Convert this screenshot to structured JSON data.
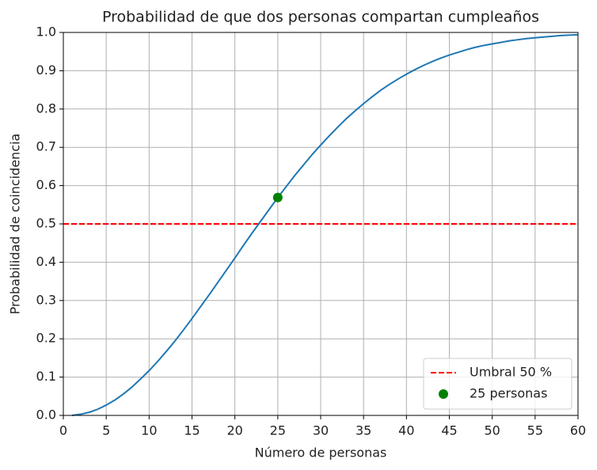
{
  "chart_data": {
    "type": "line",
    "title": "Probabilidad de que dos personas compartan cumpleaños",
    "xlabel": "Número de personas",
    "ylabel": "Probabilidad de coincidencia",
    "x": [
      1,
      2,
      3,
      4,
      5,
      6,
      7,
      8,
      9,
      10,
      11,
      12,
      13,
      14,
      15,
      16,
      17,
      18,
      19,
      20,
      21,
      22,
      23,
      24,
      25,
      26,
      27,
      28,
      29,
      30,
      31,
      32,
      33,
      34,
      35,
      36,
      37,
      38,
      39,
      40,
      41,
      42,
      43,
      44,
      45,
      46,
      47,
      48,
      49,
      50,
      51,
      52,
      53,
      54,
      55,
      56,
      57,
      58,
      59,
      60
    ],
    "series": [
      {
        "color": "#1f77b4",
        "values": [
          0,
          0.003,
          0.008,
          0.016,
          0.027,
          0.04,
          0.056,
          0.074,
          0.095,
          0.117,
          0.141,
          0.167,
          0.194,
          0.223,
          0.253,
          0.284,
          0.315,
          0.347,
          0.379,
          0.411,
          0.444,
          0.476,
          0.507,
          0.538,
          0.569,
          0.598,
          0.627,
          0.654,
          0.681,
          0.706,
          0.73,
          0.753,
          0.775,
          0.795,
          0.814,
          0.832,
          0.849,
          0.864,
          0.878,
          0.891,
          0.903,
          0.914,
          0.924,
          0.933,
          0.941,
          0.948,
          0.955,
          0.961,
          0.966,
          0.97,
          0.974,
          0.978,
          0.981,
          0.984,
          0.986,
          0.988,
          0.99,
          0.992,
          0.993,
          0.994
        ]
      }
    ],
    "hlines": [
      {
        "name": "Umbral 50 %",
        "y": 0.5,
        "color": "#ff0000",
        "style": "dashed"
      }
    ],
    "points": [
      {
        "name": "25 personas",
        "x": 25,
        "y": 0.569,
        "color": "#008000"
      }
    ],
    "xlim": [
      0,
      60
    ],
    "ylim": [
      0,
      1
    ],
    "xticks": [
      0,
      5,
      10,
      15,
      20,
      25,
      30,
      35,
      40,
      45,
      50,
      55,
      60
    ],
    "yticks": [
      {
        "value": 0,
        "label": "0.0"
      },
      0.1,
      0.2,
      0.3,
      0.4,
      0.5,
      0.6,
      0.7,
      0.8,
      0.9,
      {
        "value": 1,
        "label": "1.0"
      }
    ],
    "grid": true,
    "legend": "lower right"
  }
}
